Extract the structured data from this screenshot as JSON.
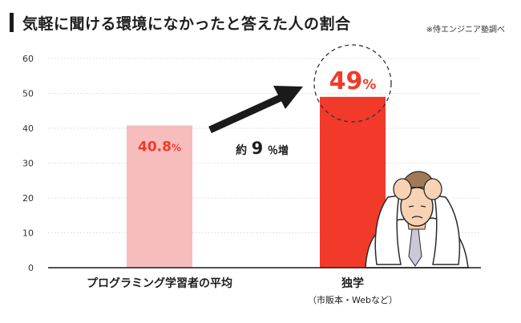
{
  "header": {
    "title": "気軽に聞ける環境になかったと答えた人の割合",
    "source_note": "※侍エンジニア塾調べ"
  },
  "annotation": {
    "prefix": "約",
    "number": "9",
    "suffix": "％増"
  },
  "colors": {
    "bar_light": "#f7bdbd",
    "bar_strong": "#f23a2a",
    "label_red": "#f23a2a",
    "axis": "#1a1a1a",
    "grid": "#d9d9d9"
  },
  "chart_data": {
    "type": "bar",
    "categories": [
      "プログラミング学習者の平均",
      "独学"
    ],
    "category_sublabels": [
      "",
      "（市販本・Webなど）"
    ],
    "values": [
      40.8,
      49
    ],
    "value_labels": [
      {
        "number": "40.8",
        "unit": "%"
      },
      {
        "number": "49",
        "unit": "%"
      }
    ],
    "yticks": [
      0,
      10,
      20,
      30,
      40,
      50,
      60
    ],
    "ylim": [
      0,
      60
    ],
    "grid": true,
    "title": "気軽に聞ける環境になかったと答えた人の割合",
    "xlabel": "",
    "ylabel": ""
  }
}
